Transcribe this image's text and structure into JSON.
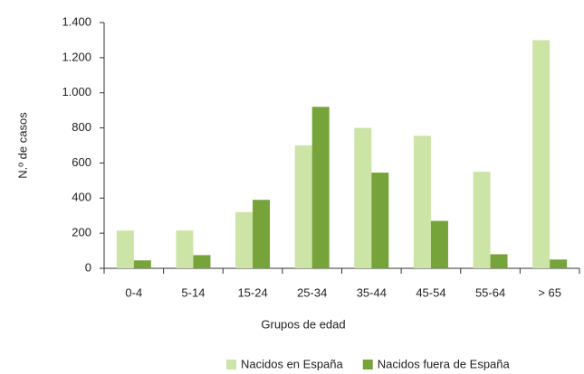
{
  "chart_data": {
    "type": "bar",
    "x_label": "Grupos de edad",
    "y_label": "N.º de casos",
    "categories": [
      "0-4",
      "5-14",
      "15-24",
      "25-34",
      "35-44",
      "45-54",
      "55-64",
      "> 65"
    ],
    "series": [
      {
        "name": "Nacidos en España",
        "color": "#cde4a7",
        "values": [
          215,
          215,
          320,
          700,
          800,
          755,
          550,
          1300
        ]
      },
      {
        "name": "Nacidos fuera de España",
        "color": "#76a33a",
        "values": [
          45,
          75,
          390,
          920,
          545,
          270,
          80,
          50
        ]
      }
    ],
    "ylim": [
      0,
      1400
    ],
    "yticks": [
      0,
      200,
      400,
      600,
      800,
      {
        "value": 1000,
        "label": "1.000"
      },
      {
        "value": 1200,
        "label": "1.200"
      },
      {
        "value": 1400,
        "label": "1.400"
      }
    ],
    "grid": false,
    "legend": "bottom"
  }
}
